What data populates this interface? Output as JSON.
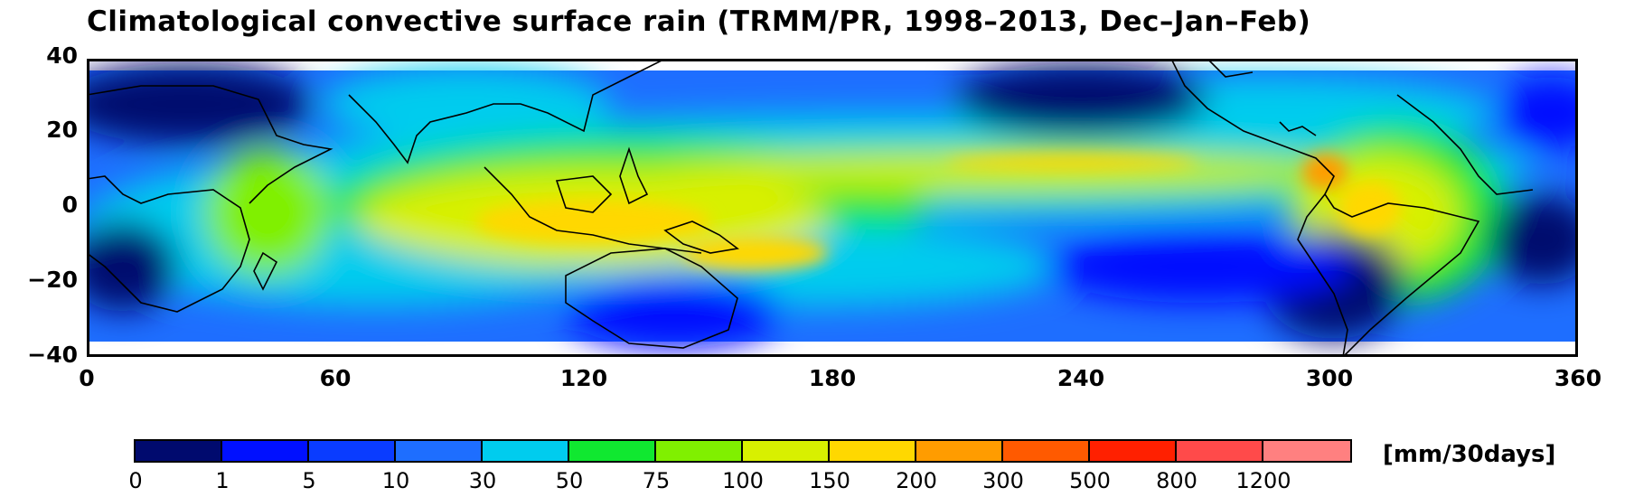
{
  "title": "Climatological convective surface rain  (TRMM/PR, 1998–2013, Dec–Jan–Feb)",
  "map": {
    "lat_range": [
      -40,
      40
    ],
    "lon_range": [
      0,
      360
    ],
    "x_ticks": [
      "0",
      "60",
      "120",
      "180",
      "240",
      "300",
      "360"
    ],
    "y_ticks": [
      "40",
      "20",
      "0",
      "−20",
      "−40"
    ]
  },
  "colorbar": {
    "colors": [
      "#000a6e",
      "#0010ff",
      "#0a3cff",
      "#1e6eff",
      "#00ccee",
      "#10e830",
      "#80f000",
      "#d8f000",
      "#ffd800",
      "#ff9c00",
      "#ff5a00",
      "#ff2000",
      "#ff4a4a",
      "#ff8080"
    ],
    "labels": [
      "0",
      "1",
      "5",
      "10",
      "30",
      "50",
      "75",
      "100",
      "150",
      "200",
      "300",
      "500",
      "800",
      "1200"
    ],
    "unit": "[mm/30days]"
  }
}
